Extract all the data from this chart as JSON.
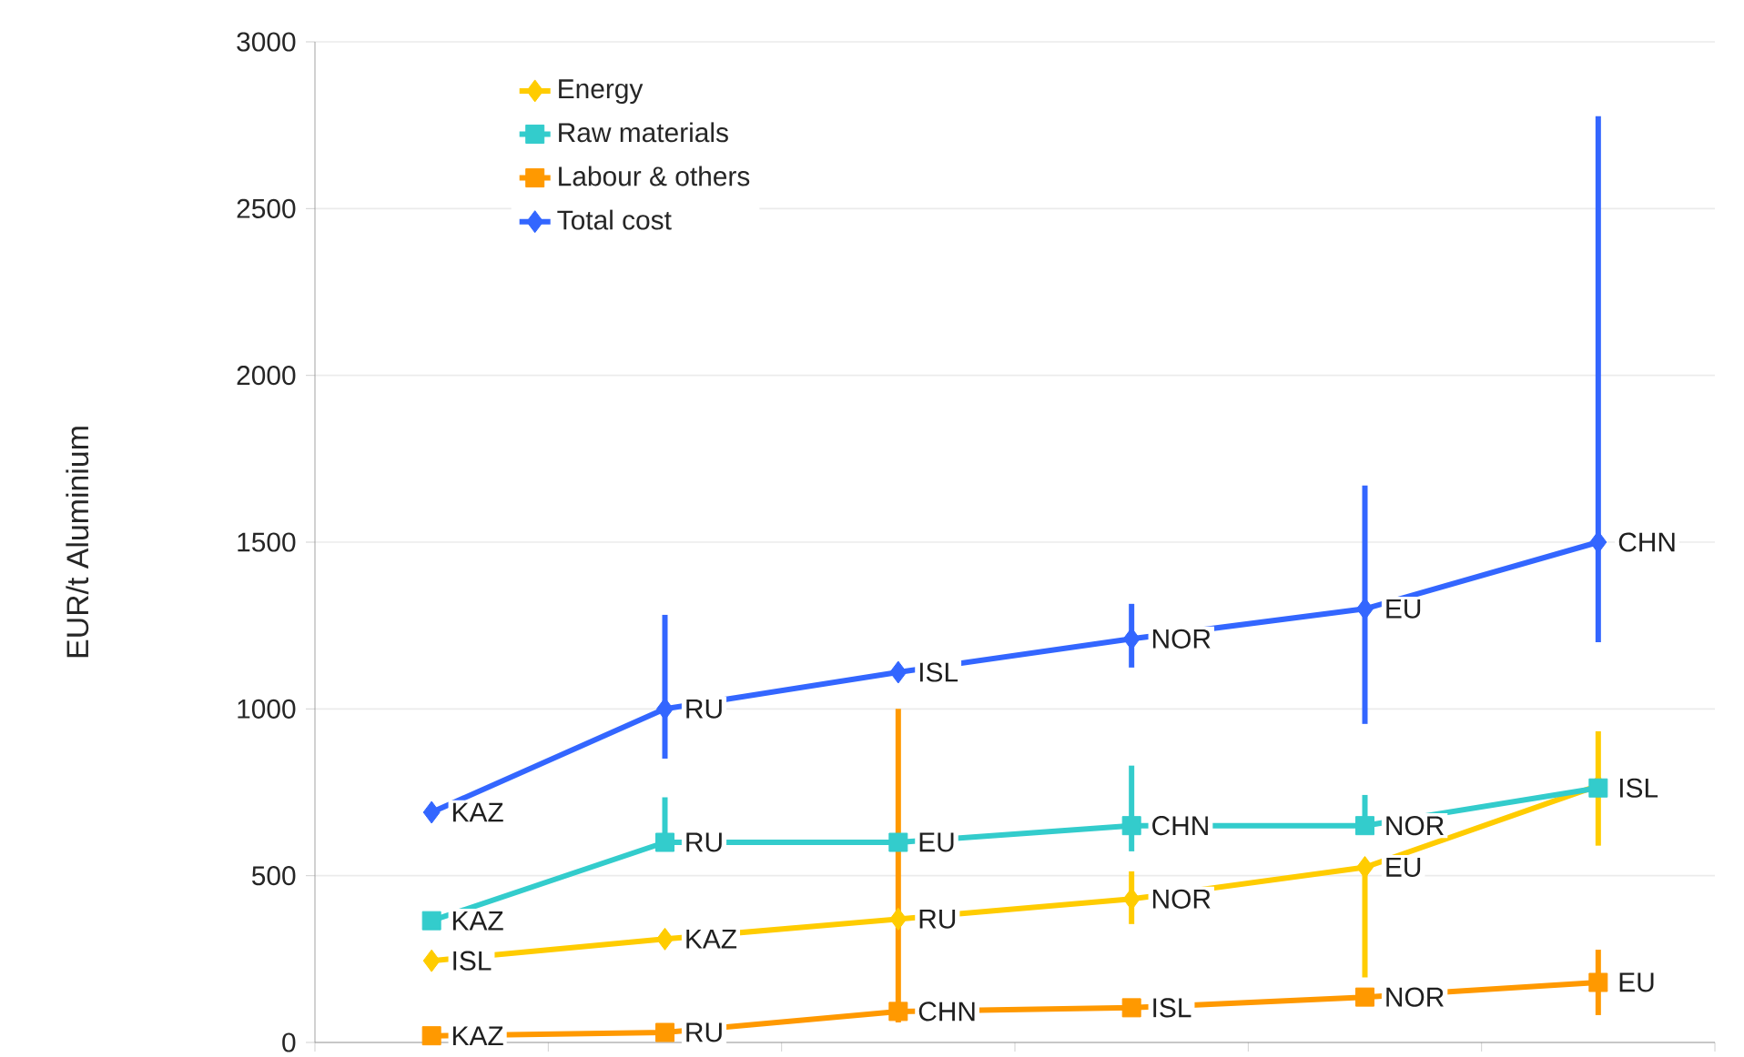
{
  "chart_data": {
    "type": "line",
    "ylabel": "EUR/t Aluminium",
    "categories": [
      null,
      null,
      null,
      null,
      null,
      null
    ],
    "ylim": [
      0,
      3000
    ],
    "yticks": [
      0,
      500,
      1000,
      1500,
      2000,
      2500,
      3000
    ],
    "grid": "y",
    "legend": "top left",
    "tick_labels": "y",
    "series": [
      {
        "name": "Energy",
        "color": "#ffcc00",
        "marker": "diamond",
        "values": [
          245,
          310,
          370,
          430,
          525,
          770
        ],
        "errors": [
          null,
          null,
          null,
          [
            355,
            513
          ],
          [
            195,
            525
          ],
          [
            590,
            933
          ]
        ],
        "value_labels": [
          "ISL",
          "KAZ",
          "RU",
          "NOR",
          "EU",
          null
        ]
      },
      {
        "name": "Raw materials",
        "color": "#33cccc",
        "marker": "square",
        "values": [
          365,
          600,
          600,
          650,
          650,
          763
        ],
        "errors": [
          null,
          [
            600,
            735
          ],
          null,
          [
            573,
            830
          ],
          [
            650,
            742
          ],
          null
        ],
        "value_labels": [
          "KAZ",
          "RU",
          "EU",
          "CHN",
          "NOR",
          "ISL"
        ]
      },
      {
        "name": "Labour & others",
        "color": "#ff9900",
        "marker": "square",
        "values": [
          20,
          30,
          93,
          104,
          136,
          180
        ],
        "errors": [
          null,
          null,
          [
            60,
            1000
          ],
          null,
          null,
          [
            82,
            278
          ]
        ],
        "value_labels": [
          "KAZ",
          "RU",
          "CHN",
          "ISL",
          "NOR",
          "EU"
        ]
      },
      {
        "name": "Total cost",
        "color": "#3366ff",
        "marker": "diamond",
        "values": [
          690,
          1000,
          1110,
          1210,
          1300,
          1500
        ],
        "errors": [
          null,
          [
            851,
            1282
          ],
          null,
          [
            1124,
            1315
          ],
          [
            955,
            1670
          ],
          [
            1200,
            2777
          ]
        ],
        "value_labels": [
          "KAZ",
          "RU",
          "ISL",
          "NOR",
          "EU",
          "CHN"
        ]
      }
    ]
  }
}
